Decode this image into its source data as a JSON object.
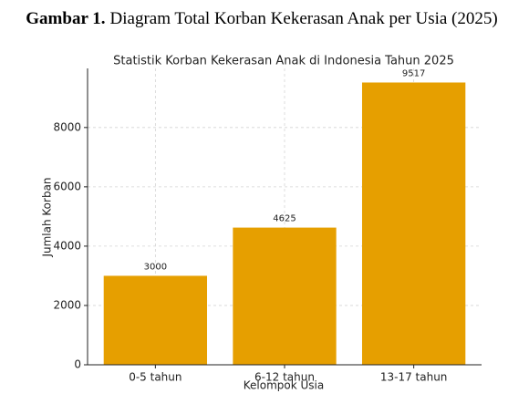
{
  "caption": {
    "label": "Gambar 1.",
    "text": "Diagram Total Korban Kekerasan Anak per Usia (2025)"
  },
  "chart_data": {
    "type": "bar",
    "title": "Statistik Korban Kekerasan Anak di Indonesia Tahun 2025",
    "x_label": "Kelompok Usia",
    "y_label": "Jumlah Korban",
    "categories": [
      "0-5 tahun",
      "6-12 tahun",
      "13-17 tahun"
    ],
    "values": [
      3000,
      4625,
      9517
    ],
    "color": "#e69f00",
    "ylim": [
      0,
      9993
    ],
    "yticks": [
      0,
      2000,
      4000,
      6000,
      8000
    ],
    "grid": true
  }
}
